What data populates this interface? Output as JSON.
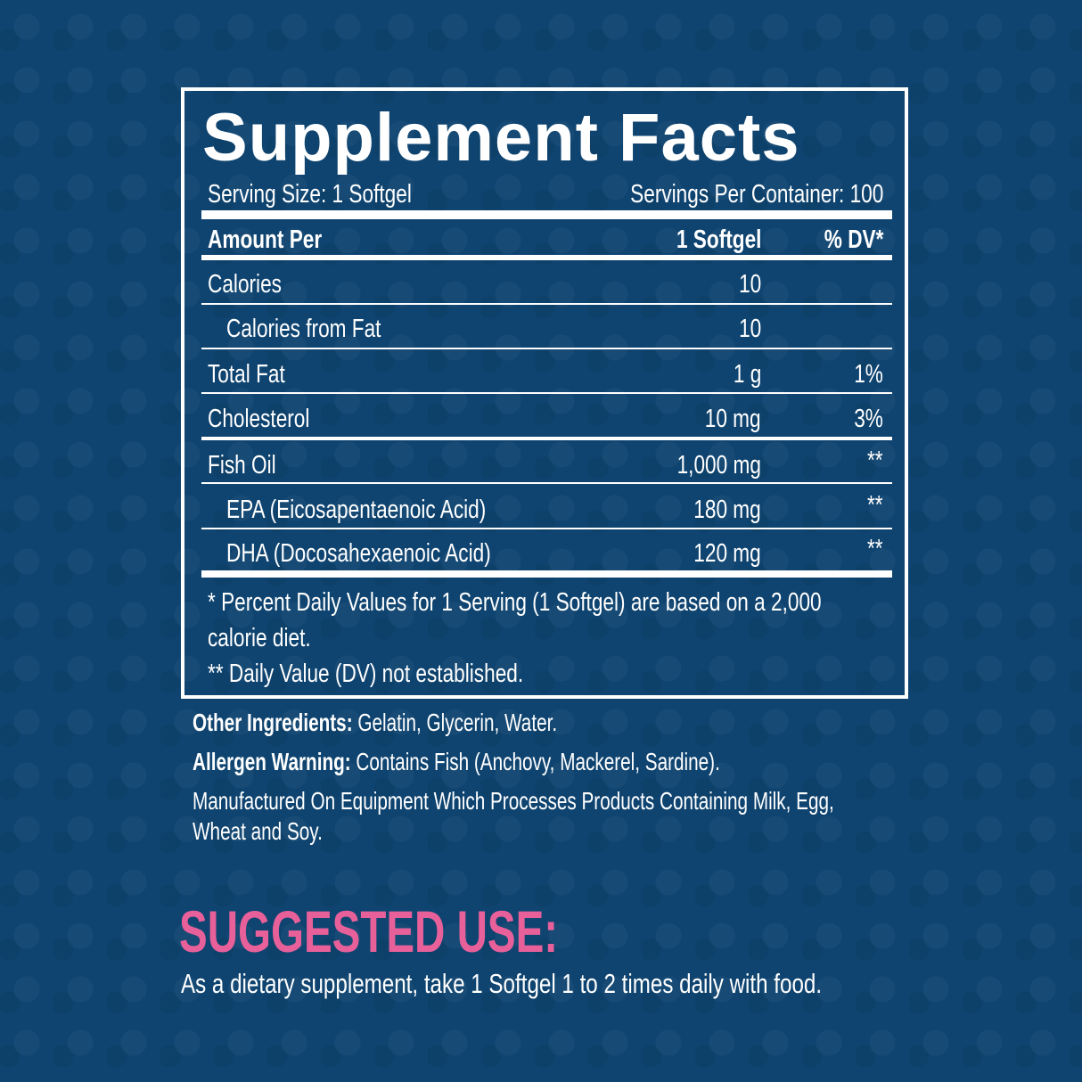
{
  "colors": {
    "background": "#0f4470",
    "accent": "#e8609a",
    "text": "#ffffff"
  },
  "panel": {
    "title": "Supplement Facts",
    "serving_size": "Serving Size: 1 Softgel",
    "servings_per_container": "Servings Per Container: 100",
    "header": {
      "amount_per": "Amount Per",
      "serving": "1 Softgel",
      "dv": "% DV*"
    },
    "rows": [
      {
        "label": "Calories",
        "amount": "10",
        "dv": ""
      },
      {
        "label": "Calories from Fat",
        "amount": "10",
        "dv": ""
      },
      {
        "label": "Total Fat",
        "amount": "1 g",
        "dv": "1%"
      },
      {
        "label": "Cholesterol",
        "amount": "10 mg",
        "dv": "3%"
      },
      {
        "label": "Fish Oil",
        "amount": "1,000 mg",
        "dv": "**"
      },
      {
        "label": "EPA (Eicosapentaenoic Acid)",
        "amount": "180 mg",
        "dv": "**"
      },
      {
        "label": "DHA (Docosahexaenoic Acid)",
        "amount": "120 mg",
        "dv": "**"
      }
    ],
    "footnote_1a": "* Percent Daily Values for 1 Serving (1 Softgel) are based on a 2,000",
    "footnote_1b": "calorie diet.",
    "footnote_2": "** Daily Value (DV) not established."
  },
  "other_ingredients": {
    "label": "Other Ingredients:",
    "value": " Gelatin, Glycerin, Water."
  },
  "allergen": {
    "label": "Allergen Warning:",
    "value": " Contains Fish (Anchovy, Mackerel, Sardine)."
  },
  "manufactured_a": "Manufactured On Equipment Which Processes Products Containing Milk, Egg,",
  "manufactured_b": "Wheat and Soy.",
  "suggested_use": {
    "title": "SUGGESTED USE:",
    "text": "As a dietary supplement, take 1 Softgel 1 to 2 times daily with food."
  }
}
